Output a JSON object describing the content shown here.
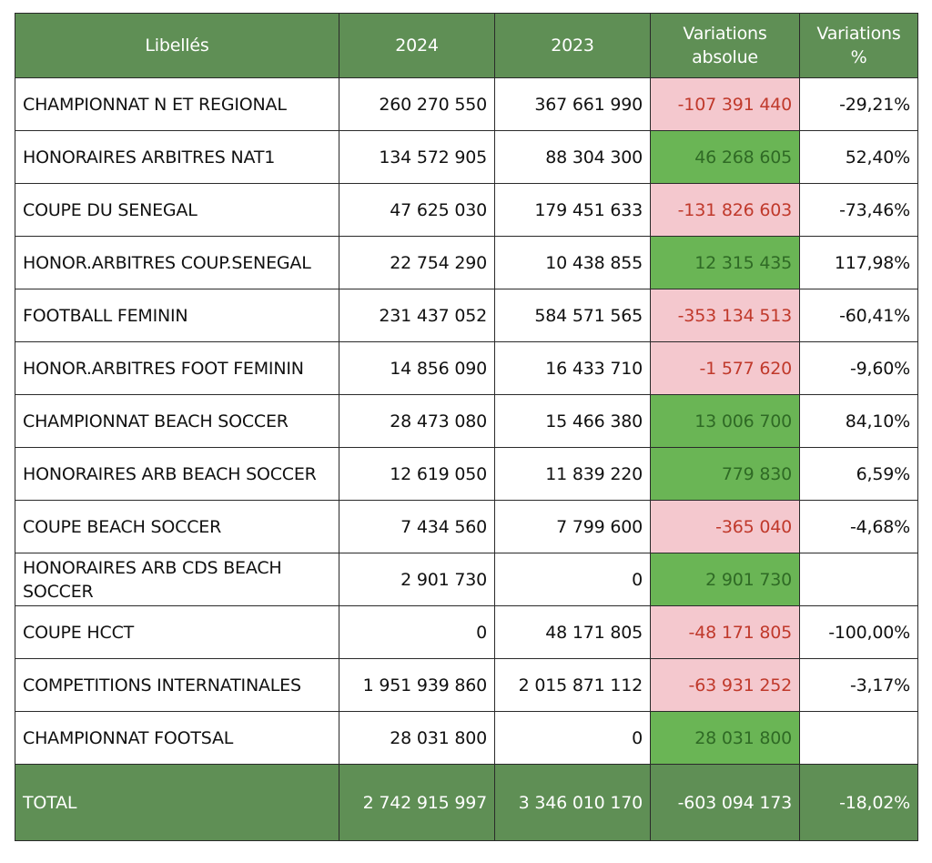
{
  "headers": {
    "label": "Libellés",
    "y2024": "2024",
    "y2023": "2023",
    "abs": "Variations absolue",
    "pct": "Variations %"
  },
  "rows": [
    {
      "label": "CHAMPIONNAT N ET REGIONAL",
      "y2024": "260 270 550",
      "y2023": "367 661 990",
      "abs": "-107 391 440",
      "pct": "-29,21%",
      "sign": "neg"
    },
    {
      "label": "HONORAIRES ARBITRES NAT1",
      "y2024": "134 572 905",
      "y2023": "88 304 300",
      "abs": "46 268 605",
      "pct": "52,40%",
      "sign": "pos"
    },
    {
      "label": "COUPE DU SENEGAL",
      "y2024": "47 625 030",
      "y2023": "179 451 633",
      "abs": "-131 826 603",
      "pct": "-73,46%",
      "sign": "neg"
    },
    {
      "label": "HONOR.ARBITRES COUP.SENEGAL",
      "y2024": "22 754 290",
      "y2023": "10 438 855",
      "abs": "12 315 435",
      "pct": "117,98%",
      "sign": "pos"
    },
    {
      "label": "FOOTBALL FEMININ",
      "y2024": "231 437 052",
      "y2023": "584 571 565",
      "abs": "-353 134 513",
      "pct": "-60,41%",
      "sign": "neg"
    },
    {
      "label": "HONOR.ARBITRES FOOT FEMININ",
      "y2024": "14 856 090",
      "y2023": "16 433 710",
      "abs": "-1 577 620",
      "pct": "-9,60%",
      "sign": "neg"
    },
    {
      "label": "CHAMPIONNAT BEACH SOCCER",
      "y2024": "28 473 080",
      "y2023": "15 466 380",
      "abs": "13 006 700",
      "pct": "84,10%",
      "sign": "pos"
    },
    {
      "label": "HONORAIRES ARB BEACH SOCCER",
      "y2024": "12 619 050",
      "y2023": "11 839 220",
      "abs": "779 830",
      "pct": "6,59%",
      "sign": "pos"
    },
    {
      "label": "COUPE BEACH SOCCER",
      "y2024": "7 434 560",
      "y2023": "7 799 600",
      "abs": "-365 040",
      "pct": "-4,68%",
      "sign": "neg"
    },
    {
      "label": "HONORAIRES ARB CDS BEACH SOCCER",
      "y2024": "2 901 730",
      "y2023": "0",
      "abs": "2 901 730",
      "pct": "",
      "sign": "pos"
    },
    {
      "label": "COUPE HCCT",
      "y2024": "0",
      "y2023": "48 171 805",
      "abs": "-48 171 805",
      "pct": "-100,00%",
      "sign": "neg"
    },
    {
      "label": "COMPETITIONS INTERNATINALES",
      "y2024": "1 951 939 860",
      "y2023": "2 015 871 112",
      "abs": "-63 931 252",
      "pct": "-3,17%",
      "sign": "neg"
    },
    {
      "label": "CHAMPIONNAT FOOTSAL",
      "y2024": "28 031 800",
      "y2023": "0",
      "abs": "28 031 800",
      "pct": "",
      "sign": "pos"
    }
  ],
  "total": {
    "label": "TOTAL",
    "y2024": "2 742 915 997",
    "y2023": "3 346 010 170",
    "abs": "-603 094 173",
    "pct": "-18,02%"
  },
  "colors": {
    "header_green": "#5f8f55",
    "negative_bg": "#f4c8ce",
    "negative_text": "#c0392b",
    "positive_bg": "#6ab555",
    "positive_text": "#2f6a25"
  }
}
